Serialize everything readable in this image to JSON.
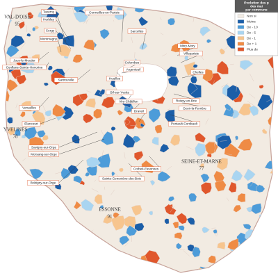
{
  "departments": [
    {
      "name": "VAL-D'OISE",
      "number": "95"
    },
    {
      "name": "YVELINES",
      "number": "78"
    },
    {
      "name": "SEINE-ET-MARNE",
      "number": "77"
    },
    {
      "name": "ESSONNE",
      "number": "91"
    }
  ],
  "communes": [
    "Taverny",
    "Herblay",
    "Cergy",
    "Montmagny",
    "Cormeilles-en-Parisis",
    "Sarcelles",
    "Jouy-le-Moutier",
    "Conflans-Sainte-Honorine",
    "Sartrouville",
    "Colombes",
    "Argenteuil",
    "Houilles",
    "Mitry-Mory",
    "Villeparisis",
    "Chelles",
    "Roissy-en-Brie",
    "Ozoir-la-Ferrière",
    "Pontault-Combault",
    "Versailles",
    "Elancourt",
    "Gif-sur-Yvette",
    "Viry-Châtillon",
    "Draveil",
    "Savigny-sur-Orge",
    "Morsang-sur-Orge",
    "Brétigny-sur-Orge",
    "Sainte-Geneviève-des-Bois",
    "Corbeil-Essonnes"
  ],
  "legend": {
    "title": [
      "Evolution des p",
      "des mai",
      "par commune"
    ],
    "items": [
      {
        "label": "Non si",
        "color": "#f2ece4"
      },
      {
        "label": "Moins",
        "color": "#1b5ea8"
      },
      {
        "label": "De - 10",
        "color": "#4d9cd9"
      },
      {
        "label": "De - 5",
        "color": "#a9d5f1"
      },
      {
        "label": "De - 1",
        "color": "#f7c58e"
      },
      {
        "label": "De + 1",
        "color": "#ef8b45"
      },
      {
        "label": "Plus de",
        "color": "#e0572c"
      }
    ]
  }
}
